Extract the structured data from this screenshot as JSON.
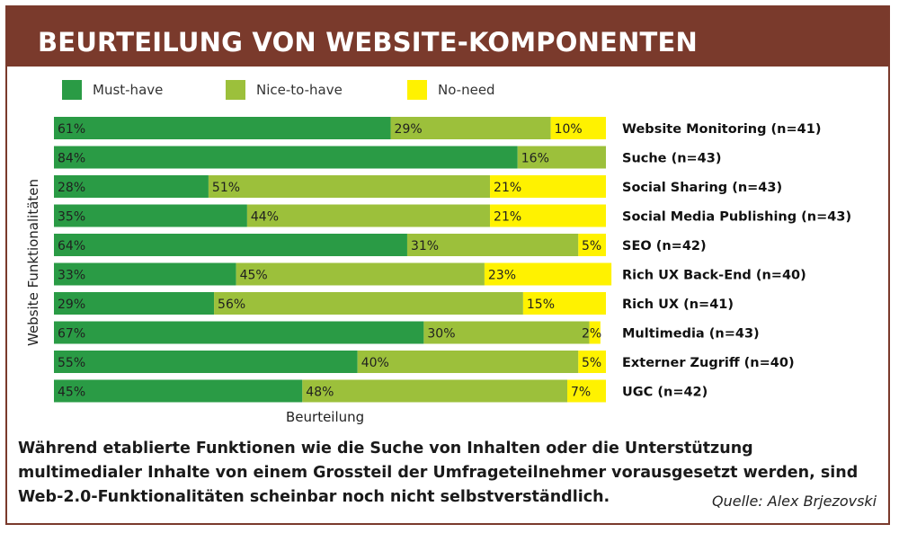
{
  "header": {
    "title": "BEURTEILUNG VON WEBSITE-KOMPONENTEN"
  },
  "colors": {
    "must": "#2a9b45",
    "nice": "#9cc03b",
    "none": "#fff200",
    "header_bg": "#7a3a2c"
  },
  "chart_data": {
    "type": "bar",
    "orientation": "horizontal",
    "stacked": true,
    "xlabel": "Beurteilung",
    "ylabel": "Website Funktionalitäten",
    "xlim": [
      0,
      100
    ],
    "legend_position": "top",
    "categories": [
      "Website Monitoring (n=41)",
      "Suche (n=43)",
      "Social Sharing (n=43)",
      "Social Media Publishing (n=43)",
      "SEO (n=42)",
      "Rich UX Back-End (n=40)",
      "Rich UX (n=41)",
      "Multimedia (n=43)",
      "Externer Zugriff (n=40)",
      "UGC (n=42)"
    ],
    "series": [
      {
        "name": "Must-have",
        "color": "#2a9b45",
        "values": [
          61,
          84,
          28,
          35,
          64,
          33,
          29,
          67,
          55,
          45
        ],
        "labels": [
          "61%",
          "84%",
          "28%",
          "35%",
          "64%",
          "33%",
          "29%",
          "67%",
          "55%",
          "45%"
        ]
      },
      {
        "name": "Nice-to-have",
        "color": "#9cc03b",
        "values": [
          29,
          16,
          51,
          44,
          31,
          45,
          56,
          30,
          40,
          48
        ],
        "labels": [
          "29%",
          "16%",
          "51%",
          "44%",
          "31%",
          "45%",
          "56%",
          "30%",
          "40%",
          "48%"
        ]
      },
      {
        "name": "No-need",
        "color": "#fff200",
        "values": [
          10,
          0,
          21,
          21,
          5,
          23,
          15,
          2,
          5,
          7
        ],
        "labels": [
          "10%",
          "",
          "21%",
          "21%",
          "5%",
          "23%",
          "15%",
          "2%",
          "5%",
          "7%"
        ]
      }
    ]
  },
  "caption": "Während etablierte Funktionen wie die Suche von Inhalten oder die Unterstützung multimedialer Inhalte von einem Grossteil der Umfrageteilnehmer vorausgesetzt werden, sind Web-2.0-Funktionalitäten scheinbar noch nicht selbstverständlich.",
  "source": "Quelle: Alex Brjezovski"
}
